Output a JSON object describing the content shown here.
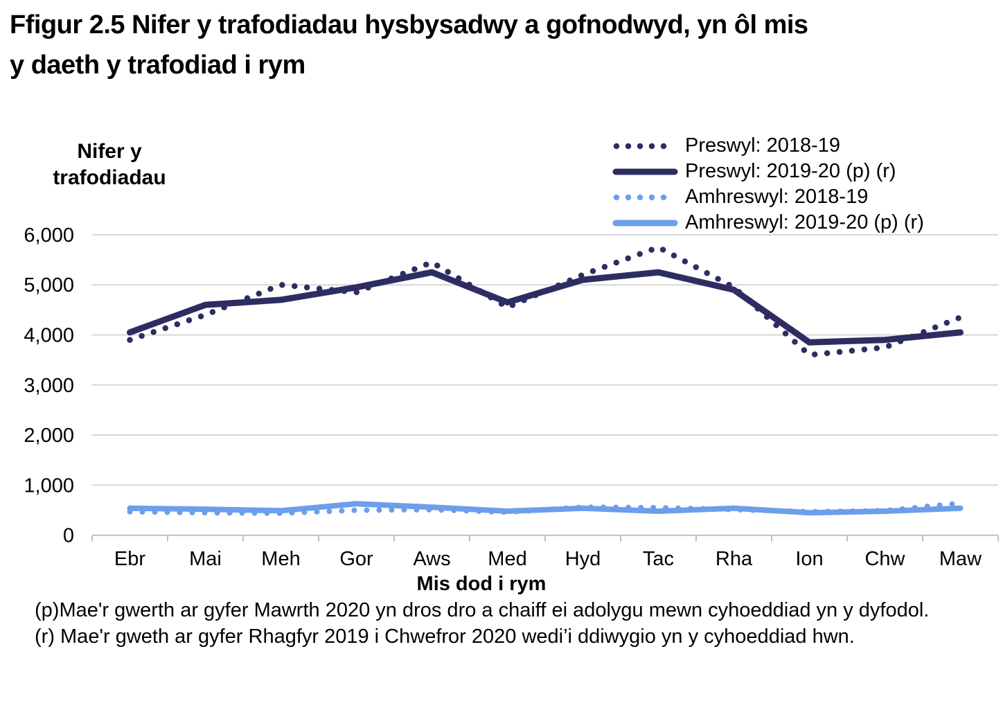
{
  "title": "Ffigur 2.5  Nifer y trafodiadau hysbysadwy a gofnodwyd, yn ôl mis\ny daeth y trafodiad i rym",
  "y_axis_title": "Nifer y\ntrafodiadau",
  "colors": {
    "navy": "#2E2D62",
    "light_blue": "#6D9EEB",
    "gridline": "#D6D6D6",
    "axis": "#BFBFBF",
    "text": "#000000"
  },
  "legend": {
    "items": [
      {
        "label": "Preswyl: 2018-19",
        "color": "#2E2D62",
        "style": "dotted"
      },
      {
        "label": "Preswyl: 2019-20 (p) (r)",
        "color": "#2E2D62",
        "style": "solid"
      },
      {
        "label": "Amhreswyl: 2018-19",
        "color": "#6D9EEB",
        "style": "dotted"
      },
      {
        "label": "Amhreswyl: 2019-20 (p) (r)",
        "color": "#6D9EEB",
        "style": "solid"
      }
    ]
  },
  "chart_data": {
    "type": "line",
    "title": "Ffigur 2.5  Nifer y trafodiadau hysbysadwy a gofnodwyd, yn ôl mis y daeth y trafodiad i rym",
    "xlabel": "Mis dod i rym",
    "ylabel": "Nifer y trafodiadau",
    "ylim": [
      0,
      6000
    ],
    "ytick_labels": [
      "0",
      "1,000",
      "2,000",
      "3,000",
      "4,000",
      "5,000",
      "6,000"
    ],
    "grid": true,
    "legend_position": "top-right",
    "categories": [
      "Ebr",
      "Mai",
      "Meh",
      "Gor",
      "Aws",
      "Med",
      "Hyd",
      "Tac",
      "Rha",
      "Ion",
      "Chw",
      "Maw"
    ],
    "series": [
      {
        "name": "Preswyl: 2018-19",
        "style": "dotted",
        "color": "#2E2D62",
        "values": [
          3900,
          4400,
          5000,
          4850,
          5450,
          4550,
          5200,
          5750,
          4950,
          3600,
          3750,
          4350
        ]
      },
      {
        "name": "Preswyl: 2019-20 (p) (r)",
        "style": "solid",
        "color": "#2E2D62",
        "values": [
          4050,
          4600,
          4700,
          4950,
          5250,
          4650,
          5100,
          5250,
          4900,
          3850,
          3900,
          4050
        ]
      },
      {
        "name": "Amhreswyl: 2018-19",
        "style": "dotted",
        "color": "#6D9EEB",
        "values": [
          470,
          450,
          440,
          500,
          510,
          460,
          560,
          550,
          510,
          470,
          490,
          640
        ]
      },
      {
        "name": "Amhreswyl: 2019-20 (p) (r)",
        "style": "solid",
        "color": "#6D9EEB",
        "values": [
          540,
          520,
          490,
          630,
          560,
          480,
          540,
          480,
          540,
          450,
          480,
          540
        ]
      }
    ]
  },
  "footnotes": [
    "(p)Mae'r gwerth ar gyfer Mawrth 2020 yn dros dro a chaiff ei adolygu mewn cyhoeddiad yn y dyfodol.",
    "(r) Mae'r gweth ar gyfer Rhagfyr 2019 i Chwefror 2020 wedi’i ddiwygio yn y cyhoeddiad hwn."
  ]
}
